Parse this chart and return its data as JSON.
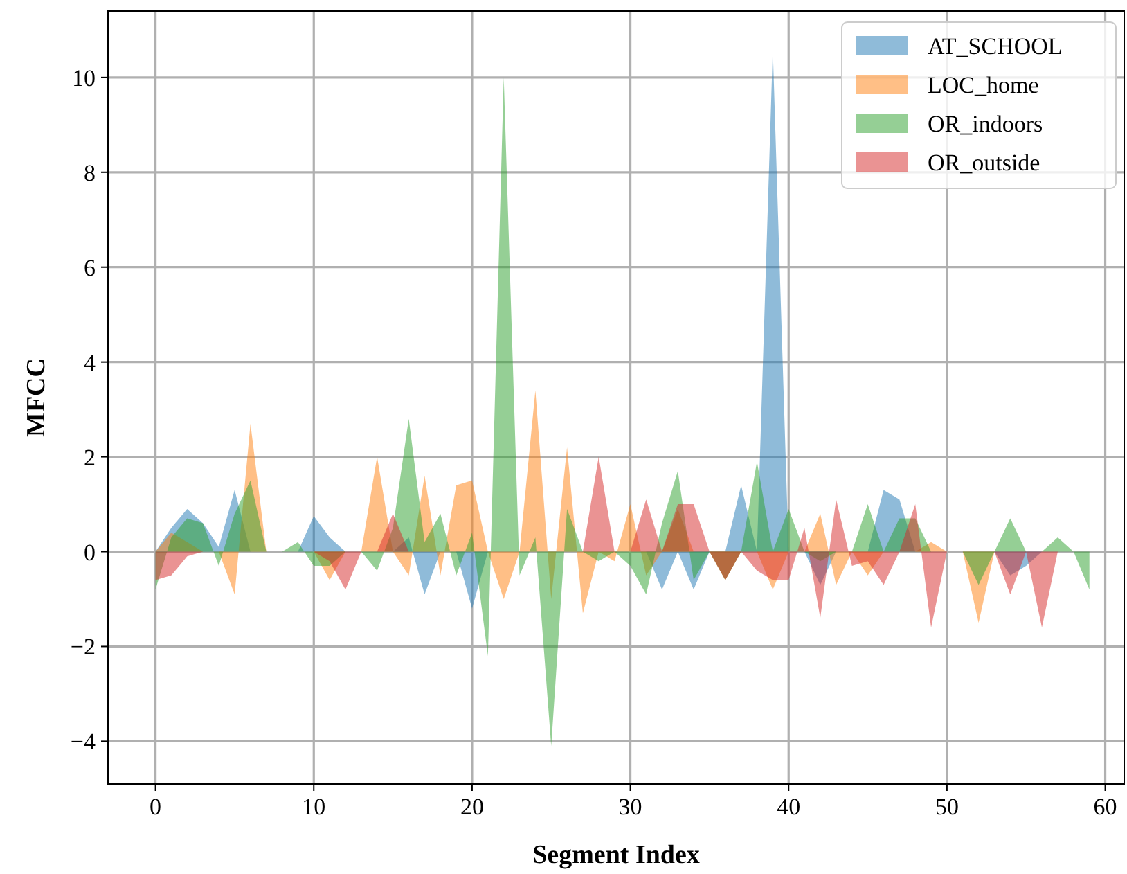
{
  "chart_data": {
    "type": "area",
    "xlabel": "Segment Index",
    "ylabel": "MFCC",
    "x": [
      0,
      1,
      2,
      3,
      4,
      5,
      6,
      7,
      8,
      9,
      10,
      11,
      12,
      13,
      14,
      15,
      16,
      17,
      18,
      19,
      20,
      21,
      22,
      23,
      24,
      25,
      26,
      27,
      28,
      29,
      30,
      31,
      32,
      33,
      34,
      35,
      36,
      37,
      38,
      39,
      40,
      41,
      42,
      43,
      44,
      45,
      46,
      47,
      48,
      49,
      50,
      51,
      52,
      53,
      54,
      55,
      56,
      57,
      58,
      59
    ],
    "series": [
      {
        "name": "AT_SCHOOL",
        "color": "#1f77b4",
        "values": [
          0,
          0.5,
          0.9,
          0.6,
          0.1,
          1.3,
          0,
          0,
          0,
          0,
          0.75,
          0.3,
          0,
          0,
          0,
          0,
          0.3,
          -0.9,
          0,
          0,
          -1.2,
          0,
          0,
          0,
          0,
          0,
          0,
          0,
          0,
          0,
          0,
          0,
          -0.8,
          0,
          -0.8,
          0,
          0,
          1.4,
          0,
          10.6,
          0,
          0,
          -0.7,
          0,
          0,
          0,
          1.3,
          1.1,
          0,
          0,
          0,
          0,
          0,
          0,
          -0.5,
          -0.3,
          0,
          0,
          0,
          0
        ]
      },
      {
        "name": "LOC_home",
        "color": "#ff7f0e",
        "values": [
          0,
          0.4,
          0.2,
          0,
          0,
          -0.9,
          2.7,
          0,
          0,
          0,
          0,
          -0.6,
          0,
          0,
          2.0,
          0,
          -0.5,
          1.6,
          -0.5,
          1.4,
          1.5,
          0,
          -1.0,
          0,
          3.4,
          -1.0,
          2.2,
          -1.3,
          0,
          -0.2,
          1.0,
          -0.5,
          0,
          0.9,
          0,
          0,
          -0.6,
          0,
          0,
          -0.8,
          0,
          0,
          0.8,
          -0.7,
          0,
          -0.5,
          0,
          0,
          0,
          0.2,
          0,
          0,
          -1.5,
          0,
          0,
          0,
          0,
          0,
          0,
          0
        ]
      },
      {
        "name": "OR_indoors",
        "color": "#2ca02c",
        "values": [
          -0.8,
          0.3,
          0.7,
          0.6,
          -0.3,
          0.8,
          1.5,
          0,
          0,
          0.2,
          -0.3,
          -0.3,
          0,
          0,
          -0.4,
          0.5,
          2.8,
          0.2,
          0.8,
          -0.5,
          0.4,
          -2.2,
          10.0,
          -0.5,
          0.3,
          -4.1,
          0.9,
          0,
          -0.2,
          0,
          -0.3,
          -0.9,
          0.6,
          1.7,
          -0.6,
          0,
          -0.6,
          0,
          1.9,
          0,
          0.9,
          0,
          -0.2,
          0,
          0,
          1.0,
          0,
          0.7,
          0.7,
          0,
          0,
          0,
          -0.7,
          0,
          0.7,
          0,
          0,
          0.3,
          0,
          -0.8
        ]
      },
      {
        "name": "OR_outside",
        "color": "#d62728",
        "values": [
          -0.6,
          -0.5,
          -0.1,
          0,
          0,
          0,
          0,
          0,
          0,
          0,
          0,
          -0.2,
          -0.8,
          0,
          0,
          0.8,
          0,
          0,
          0,
          0,
          0,
          0,
          0,
          0,
          0,
          0,
          0,
          0,
          2.0,
          0,
          0,
          1.1,
          0,
          1.0,
          1.0,
          0,
          -0.6,
          0,
          -0.4,
          -0.6,
          -0.6,
          0.5,
          -1.4,
          1.1,
          -0.3,
          -0.2,
          -0.7,
          0,
          1.0,
          -1.6,
          0,
          0,
          0,
          0,
          -0.9,
          0,
          -1.6,
          0,
          0,
          0
        ]
      }
    ],
    "xlim": [
      -3,
      61.2
    ],
    "ylim": [
      -4.9,
      11.4
    ],
    "xticks": [
      0,
      10,
      20,
      30,
      40,
      50,
      60
    ],
    "yticks": [
      -4,
      -2,
      0,
      2,
      4,
      6,
      8,
      10
    ],
    "grid": true,
    "legend": "top right"
  }
}
